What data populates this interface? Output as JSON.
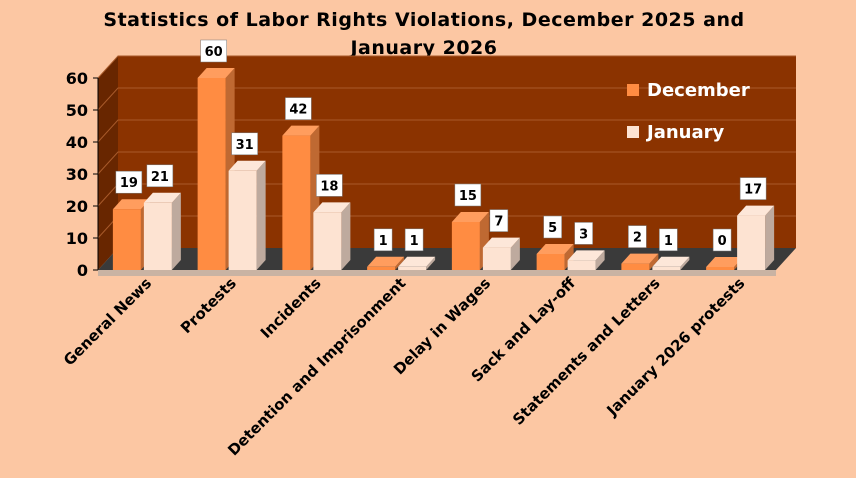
{
  "chart_data": {
    "type": "bar",
    "title_line1": "Statistics of Labor Rights Violations, December 2025 and",
    "title_line2": "January 2026",
    "categories": [
      "General News",
      "Protests",
      "Incidents",
      "Detention and Imprisonment",
      "Delay in Wages",
      "Sack and Lay-off",
      "Statements and Letters",
      "January 2026 protests"
    ],
    "series": [
      {
        "name": "December",
        "values": [
          19,
          60,
          42,
          1,
          15,
          5,
          2,
          0
        ],
        "color": "#ff8c42"
      },
      {
        "name": "January",
        "values": [
          21,
          31,
          18,
          1,
          7,
          3,
          1,
          17
        ],
        "color": "#fde3d2"
      }
    ],
    "ylim": [
      0,
      60
    ],
    "yticks": [
      0,
      10,
      20,
      30,
      40,
      50,
      60
    ],
    "gridlines": true,
    "legend_position": "top-right",
    "colors": {
      "background": "#fcc7a3",
      "plot_wall": "#8b3300",
      "floor": "#3a3a3a",
      "gridline": "#a85a2a",
      "legend_text": "#ffffff"
    }
  }
}
